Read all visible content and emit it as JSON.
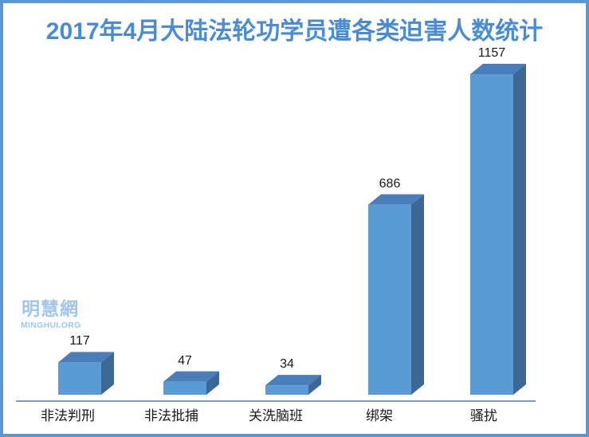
{
  "watermark": {
    "line1": "明慧網",
    "line2": "MINGHUI.ORG"
  },
  "colors": {
    "background": "#FFFFFF",
    "border": "#5A96D2",
    "title": "#4A8CD3",
    "bar_front": "#5B9BD5",
    "bar_top": "#4A7EBA",
    "bar_side": "#3D6795",
    "axis": "#4A7CC7",
    "text": "#1A1A1A",
    "watermark": "#A3C6E8"
  },
  "chart_data": {
    "type": "bar",
    "style": "3d-column",
    "title": "2017年4月大陆法轮功学员遭各类迫害人数统计",
    "categories": [
      "非法判刑",
      "非法批捕",
      "关洗脑班",
      "绑架",
      "骚扰"
    ],
    "values": [
      117,
      47,
      34,
      686,
      1157
    ],
    "value_labels_shown": true,
    "xlabel": "",
    "ylabel": "",
    "ylim": [
      0,
      1157
    ],
    "gridlines": false,
    "legend": false,
    "y_axis_shown": false
  }
}
